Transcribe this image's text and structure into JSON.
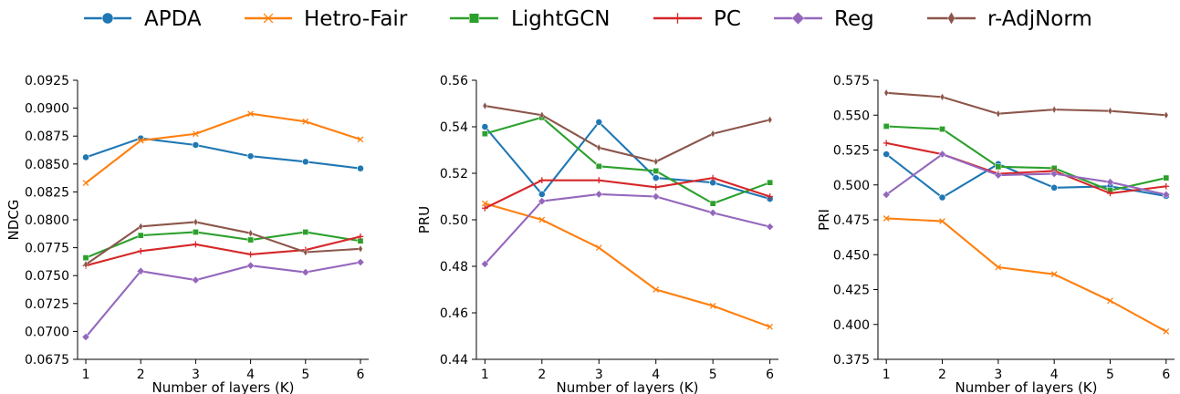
{
  "chart_data": [
    {
      "type": "line",
      "xlabel": "Number of layers (K)",
      "ylabel": "NDCG",
      "x": [
        1,
        2,
        3,
        4,
        5,
        6
      ],
      "xlim": [
        0.85,
        6.15
      ],
      "ylim": [
        0.0675,
        0.0925
      ],
      "yticks": [
        "0.0675",
        "0.0700",
        "0.0725",
        "0.0750",
        "0.0775",
        "0.0800",
        "0.0825",
        "0.0850",
        "0.0875",
        "0.0900",
        "0.0925"
      ],
      "series": [
        {
          "name": "APDA",
          "values": [
            0.0856,
            0.0873,
            0.0867,
            0.0857,
            0.0852,
            0.0846
          ]
        },
        {
          "name": "Hetro-Fair",
          "values": [
            0.0833,
            0.0871,
            0.0877,
            0.0895,
            0.0888,
            0.0872
          ]
        },
        {
          "name": "LightGCN",
          "values": [
            0.0766,
            0.0786,
            0.0789,
            0.0782,
            0.0789,
            0.0781
          ]
        },
        {
          "name": "PC",
          "values": [
            0.0759,
            0.0772,
            0.0778,
            0.0769,
            0.0773,
            0.0785
          ]
        },
        {
          "name": "Reg",
          "values": [
            0.0695,
            0.0754,
            0.0746,
            0.0759,
            0.0753,
            0.0762
          ]
        },
        {
          "name": "r-AdjNorm",
          "values": [
            0.076,
            0.0794,
            0.0798,
            0.0788,
            0.0771,
            0.0774
          ]
        }
      ]
    },
    {
      "type": "line",
      "xlabel": "Number of layers (K)",
      "ylabel": "PRU",
      "x": [
        1,
        2,
        3,
        4,
        5,
        6
      ],
      "xlim": [
        0.85,
        6.15
      ],
      "ylim": [
        0.44,
        0.56
      ],
      "yticks": [
        "0.44",
        "0.46",
        "0.48",
        "0.50",
        "0.52",
        "0.54",
        "0.56"
      ],
      "series": [
        {
          "name": "APDA",
          "values": [
            0.54,
            0.511,
            0.542,
            0.518,
            0.516,
            0.509
          ]
        },
        {
          "name": "Hetro-Fair",
          "values": [
            0.507,
            0.5,
            0.488,
            0.47,
            0.463,
            0.454
          ]
        },
        {
          "name": "LightGCN",
          "values": [
            0.537,
            0.544,
            0.523,
            0.521,
            0.507,
            0.516
          ]
        },
        {
          "name": "PC",
          "values": [
            0.505,
            0.517,
            0.517,
            0.514,
            0.518,
            0.51
          ]
        },
        {
          "name": "Reg",
          "values": [
            0.481,
            0.508,
            0.511,
            0.51,
            0.503,
            0.497
          ]
        },
        {
          "name": "r-AdjNorm",
          "values": [
            0.549,
            0.545,
            0.531,
            0.525,
            0.537,
            0.543
          ]
        }
      ]
    },
    {
      "type": "line",
      "xlabel": "Number of layers (K)",
      "ylabel": "PRI",
      "x": [
        1,
        2,
        3,
        4,
        5,
        6
      ],
      "xlim": [
        0.85,
        6.15
      ],
      "ylim": [
        0.375,
        0.575
      ],
      "yticks": [
        "0.375",
        "0.400",
        "0.425",
        "0.450",
        "0.475",
        "0.500",
        "0.525",
        "0.550",
        "0.575"
      ],
      "series": [
        {
          "name": "APDA",
          "values": [
            0.522,
            0.491,
            0.515,
            0.498,
            0.499,
            0.492
          ]
        },
        {
          "name": "Hetro-Fair",
          "values": [
            0.476,
            0.474,
            0.441,
            0.436,
            0.417,
            0.395
          ]
        },
        {
          "name": "LightGCN",
          "values": [
            0.542,
            0.54,
            0.513,
            0.512,
            0.496,
            0.505
          ]
        },
        {
          "name": "PC",
          "values": [
            0.53,
            0.522,
            0.508,
            0.51,
            0.494,
            0.499
          ]
        },
        {
          "name": "Reg",
          "values": [
            0.493,
            0.522,
            0.507,
            0.508,
            0.502,
            0.493
          ]
        },
        {
          "name": "r-AdjNorm",
          "values": [
            0.566,
            0.563,
            0.551,
            0.554,
            0.553,
            0.55
          ]
        }
      ]
    }
  ],
  "legend": {
    "position": "top",
    "entries": [
      {
        "name": "APDA",
        "color": "#1f77b4",
        "marker": "circle"
      },
      {
        "name": "Hetro-Fair",
        "color": "#ff7f0e",
        "marker": "x"
      },
      {
        "name": "LightGCN",
        "color": "#2ca02c",
        "marker": "square"
      },
      {
        "name": "PC",
        "color": "#d62728",
        "marker": "plus"
      },
      {
        "name": "Reg",
        "color": "#9467bd",
        "marker": "diamond"
      },
      {
        "name": "r-AdjNorm",
        "color": "#8c564b",
        "marker": "thin-diamond"
      }
    ]
  }
}
